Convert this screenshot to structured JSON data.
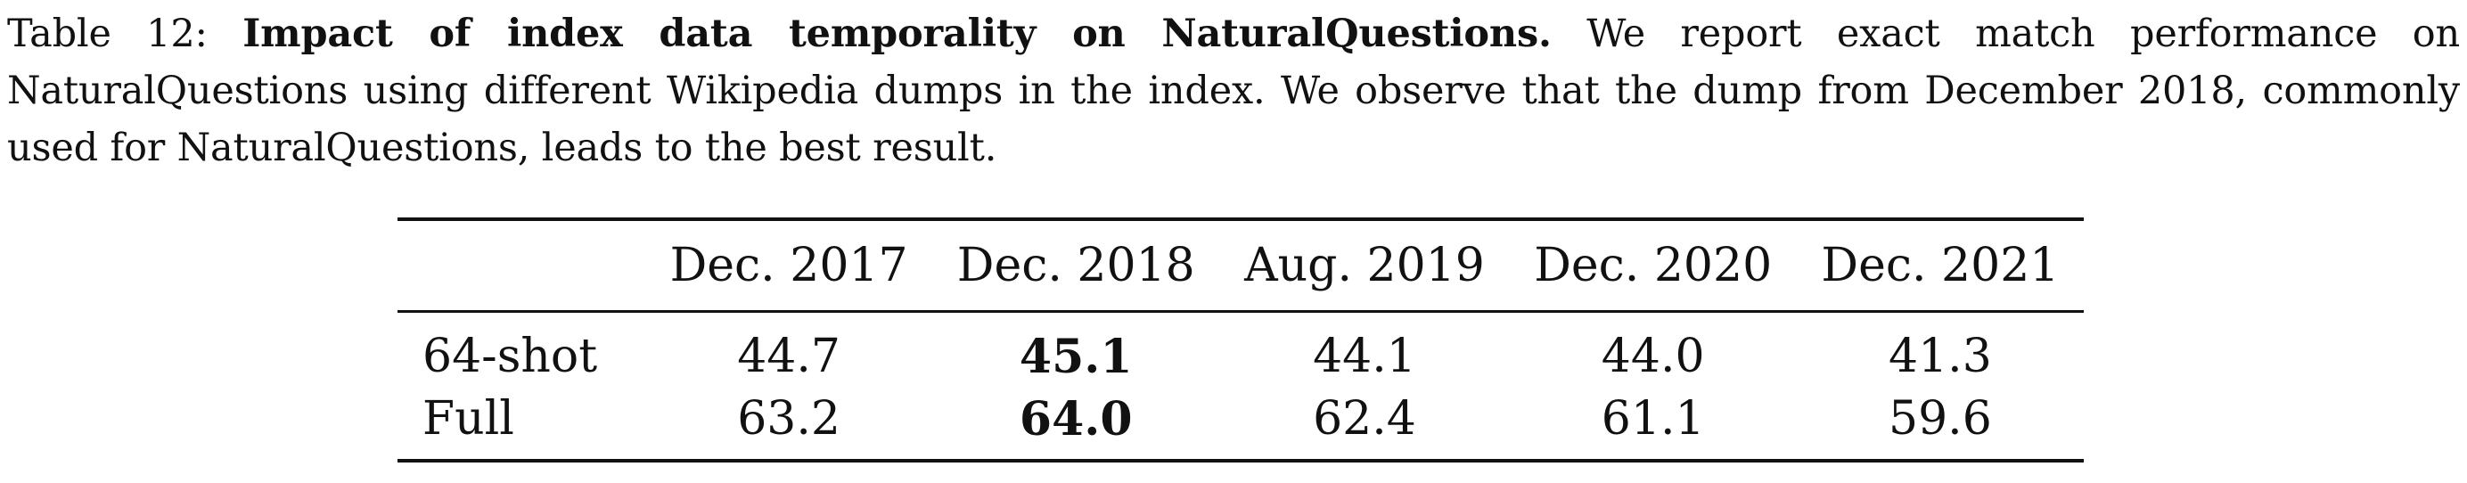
{
  "caption": {
    "label": "Table 12:",
    "title": "Impact of index data temporality on NaturalQuestions.",
    "body": "We report exact match performance on NaturalQuestions using different Wikipedia dumps in the index. We observe that the dump from December 2018, commonly used for NaturalQuestions, leads to the best result."
  },
  "table": {
    "corner": "",
    "columns": [
      "Dec. 2017",
      "Dec. 2018",
      "Aug. 2019",
      "Dec. 2020",
      "Dec. 2021"
    ],
    "rows": [
      {
        "label": "64-shot",
        "values": [
          "44.7",
          "45.1",
          "44.1",
          "44.0",
          "41.3"
        ]
      },
      {
        "label": "Full",
        "values": [
          "63.2",
          "64.0",
          "62.4",
          "61.1",
          "59.6"
        ]
      }
    ],
    "bold_column": "Dec. 2018"
  }
}
